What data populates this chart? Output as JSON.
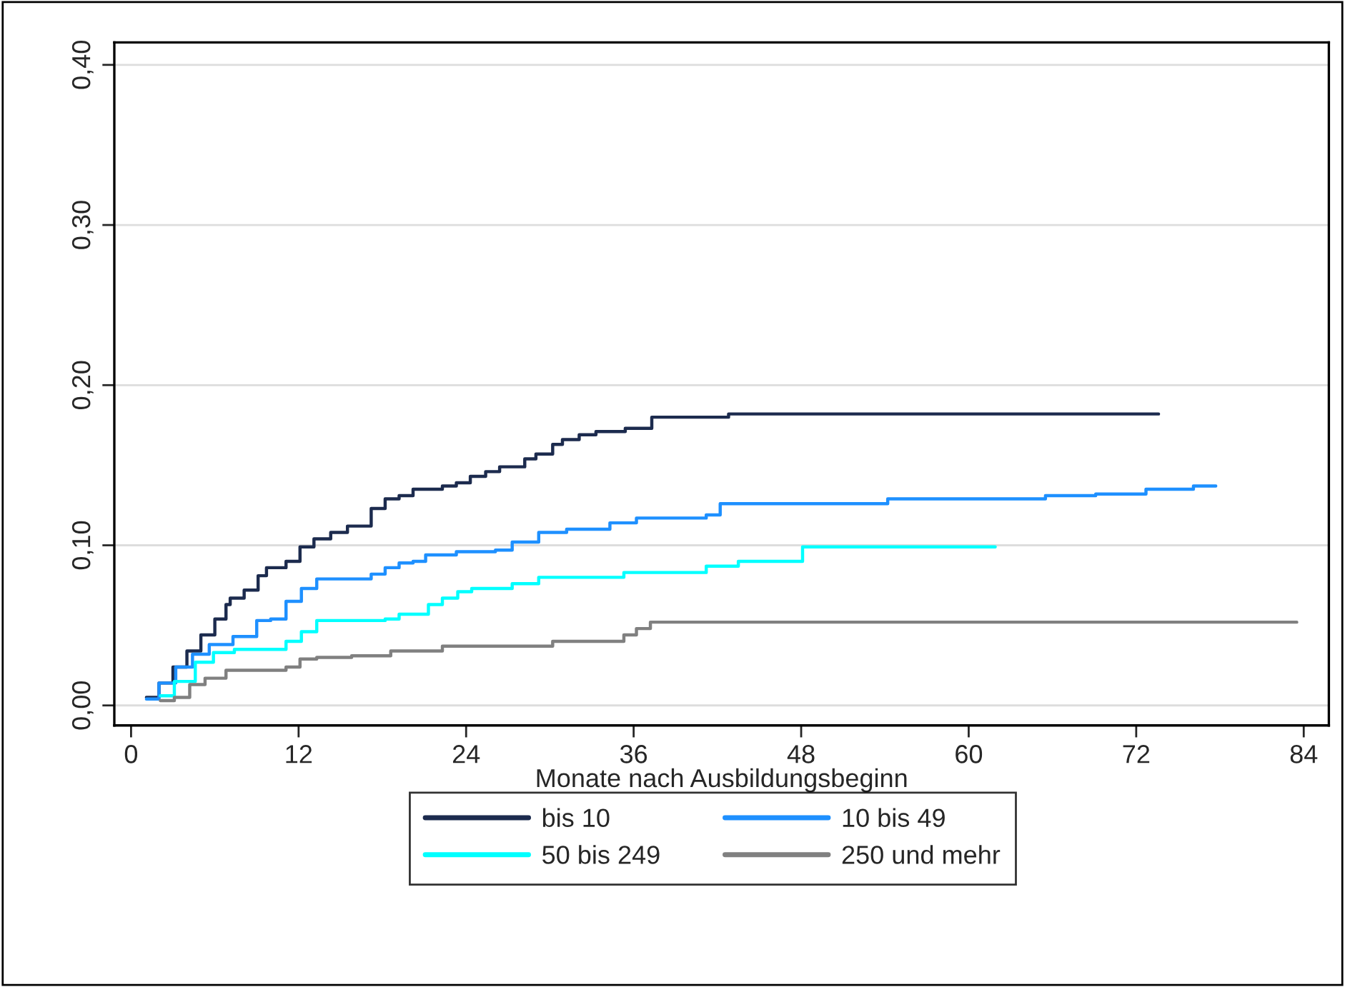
{
  "chart_data": {
    "type": "step",
    "xlabel": "Monate nach Ausbildungsbeginn",
    "xlim": [
      -1.2,
      85.8
    ],
    "ylim": [
      -0.0125,
      0.414
    ],
    "xticks": [
      0,
      12,
      24,
      36,
      48,
      60,
      72,
      84
    ],
    "yticks": [
      {
        "value": 0,
        "label": "0,00"
      },
      {
        "value": 0.1,
        "label": "0,10"
      },
      {
        "value": 0.2,
        "label": "0,20"
      },
      {
        "value": 0.3,
        "label": "0,30"
      },
      {
        "value": 0.4,
        "label": "0,40"
      }
    ],
    "grid": "y",
    "legend": "bottom",
    "line_style": "solid",
    "marker": "none",
    "series": [
      {
        "name": "bis 10",
        "color": "#1c2b4e",
        "x": [
          1.1,
          2,
          3,
          4,
          5,
          6,
          6.8,
          7.1,
          8.1,
          9.1,
          9.7,
          11.1,
          12.1,
          13.1,
          14.3,
          15.5,
          17.2,
          18.2,
          19.2,
          20.2,
          22.3,
          23.3,
          24.3,
          25.4,
          26.4,
          28.2,
          29.0,
          30.2,
          30.9,
          32.1,
          33.3,
          35.4,
          37.3,
          42.8,
          73.6
        ],
        "values": [
          0.005,
          0.014,
          0.024,
          0.034,
          0.044,
          0.054,
          0.063,
          0.067,
          0.072,
          0.081,
          0.086,
          0.09,
          0.099,
          0.104,
          0.108,
          0.112,
          0.123,
          0.129,
          0.131,
          0.135,
          0.137,
          0.139,
          0.143,
          0.146,
          0.149,
          0.154,
          0.157,
          0.163,
          0.166,
          0.169,
          0.171,
          0.173,
          0.18,
          0.182,
          0.182
        ]
      },
      {
        "name": "10 bis 49",
        "color": "#1e90ff",
        "x": [
          1.1,
          2,
          3.2,
          4.4,
          5.6,
          7.3,
          9.0,
          10.0,
          11.1,
          12.2,
          13.3,
          17.2,
          18.2,
          19.2,
          20.2,
          21.1,
          23.3,
          26.1,
          27.3,
          29.2,
          31.2,
          34.3,
          36.2,
          41.2,
          42.2,
          54.2,
          65.5,
          69.1,
          72.7,
          76.1,
          77.7
        ],
        "values": [
          0.004,
          0.014,
          0.024,
          0.032,
          0.038,
          0.043,
          0.053,
          0.054,
          0.065,
          0.073,
          0.079,
          0.082,
          0.086,
          0.089,
          0.09,
          0.094,
          0.096,
          0.097,
          0.102,
          0.108,
          0.11,
          0.114,
          0.117,
          0.119,
          0.126,
          0.129,
          0.131,
          0.132,
          0.135,
          0.137,
          0.137
        ]
      },
      {
        "name": "50 bis 249",
        "color": "#00ffff",
        "x": [
          2.1,
          3.1,
          4.6,
          5.9,
          7.4,
          11.1,
          12.2,
          13.3,
          18.2,
          19.2,
          21.3,
          22.3,
          23.4,
          24.4,
          27.3,
          29.2,
          35.3,
          41.2,
          43.5,
          47.1,
          48.1,
          61.9
        ],
        "values": [
          0.006,
          0.015,
          0.027,
          0.033,
          0.035,
          0.04,
          0.046,
          0.053,
          0.054,
          0.057,
          0.063,
          0.067,
          0.071,
          0.073,
          0.076,
          0.08,
          0.083,
          0.087,
          0.09,
          0.09,
          0.099,
          0.099
        ]
      },
      {
        "name": "250 und mehr",
        "color": "#808080",
        "x": [
          2.1,
          3.1,
          4.2,
          5.3,
          6.8,
          11.1,
          12.1,
          13.3,
          15.8,
          18.6,
          22.3,
          30.2,
          35.3,
          36.2,
          37.2,
          83.5
        ],
        "values": [
          0.003,
          0.005,
          0.013,
          0.017,
          0.022,
          0.024,
          0.029,
          0.03,
          0.031,
          0.034,
          0.037,
          0.04,
          0.044,
          0.048,
          0.052,
          0.052
        ]
      }
    ]
  }
}
